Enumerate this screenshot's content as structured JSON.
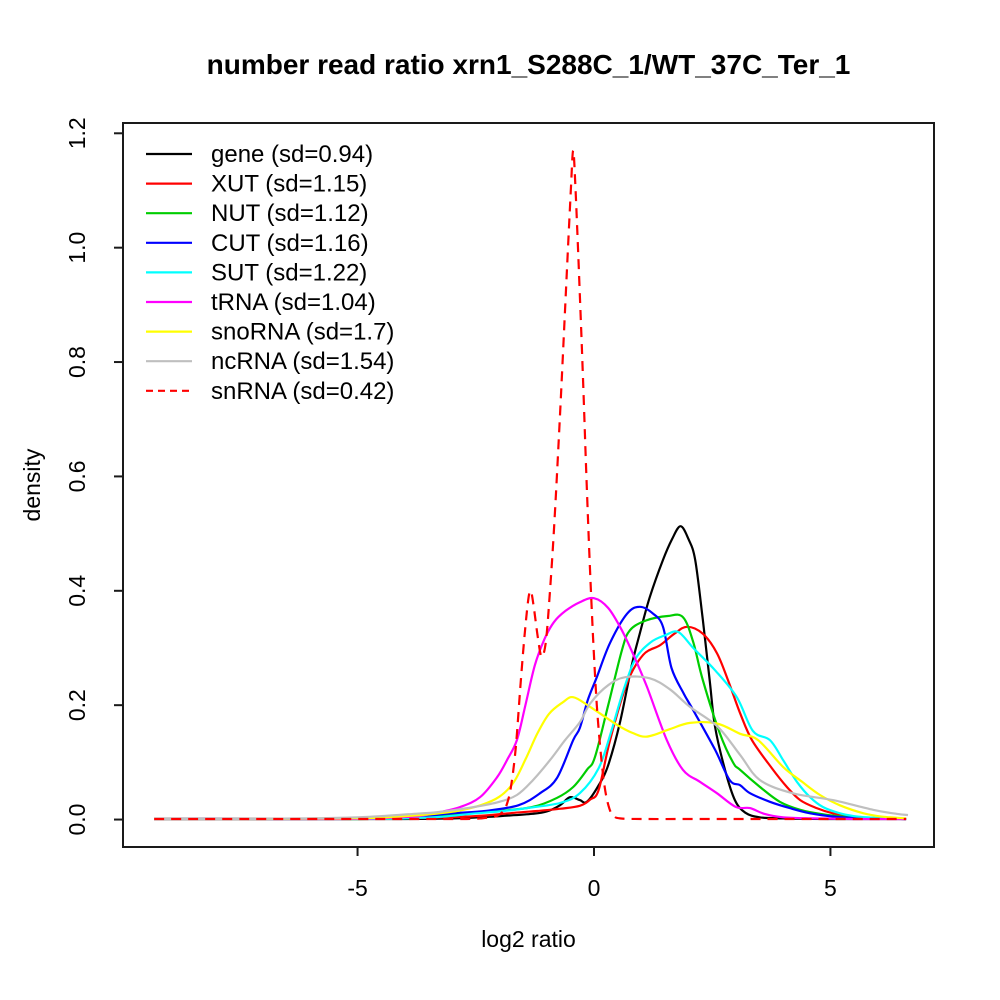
{
  "figure": {
    "background": "#ffffff",
    "box_color": "#1a1a1a"
  },
  "chart_data": {
    "type": "line",
    "title": "number read ratio xrn1_S288C_1/WT_37C_Ter_1",
    "xlabel": "log2 ratio",
    "ylabel": "density",
    "xlim": [
      -9.96,
      7.19
    ],
    "ylim": [
      -0.048,
      1.218
    ],
    "x_ticks": [
      -5,
      0,
      5
    ],
    "x_tick_labels": [
      "-5",
      "0",
      "5"
    ],
    "y_ticks": [
      0.0,
      0.2,
      0.4,
      0.6,
      0.8,
      1.0,
      1.2
    ],
    "y_tick_labels": [
      "0.0",
      "0.2",
      "0.4",
      "0.6",
      "0.8",
      "1.0",
      "1.2"
    ],
    "grid": false,
    "legend_position": "top-left",
    "series": [
      {
        "name": "gene",
        "label": "gene (sd=0.94)",
        "sd": 0.94,
        "color": "#000000",
        "dash": false,
        "points": [
          [
            -9.3,
            0.001
          ],
          [
            -7,
            0.001
          ],
          [
            -5,
            0.001
          ],
          [
            -4,
            0.001
          ],
          [
            -3,
            0.002
          ],
          [
            -2.4,
            0.004
          ],
          [
            -1.8,
            0.007
          ],
          [
            -1.3,
            0.01
          ],
          [
            -1,
            0.014
          ],
          [
            -0.72,
            0.025
          ],
          [
            -0.51,
            0.039
          ],
          [
            -0.3,
            0.034
          ],
          [
            -0.15,
            0.031
          ],
          [
            0.1,
            0.06
          ],
          [
            0.3,
            0.095
          ],
          [
            0.55,
            0.17
          ],
          [
            0.8,
            0.27
          ],
          [
            0.97,
            0.326
          ],
          [
            1.18,
            0.389
          ],
          [
            1.46,
            0.454
          ],
          [
            1.65,
            0.49
          ],
          [
            1.83,
            0.513
          ],
          [
            2,
            0.49
          ],
          [
            2.14,
            0.454
          ],
          [
            2.3,
            0.35
          ],
          [
            2.45,
            0.24
          ],
          [
            2.56,
            0.162
          ],
          [
            2.77,
            0.087
          ],
          [
            2.98,
            0.034
          ],
          [
            3.2,
            0.012
          ],
          [
            3.5,
            0.004
          ],
          [
            4,
            0.002
          ],
          [
            5,
            0.001
          ],
          [
            6.6,
            0.001
          ]
        ]
      },
      {
        "name": "XUT",
        "label": "XUT (sd=1.15)",
        "sd": 1.15,
        "color": "#ff0000",
        "dash": false,
        "points": [
          [
            -9.3,
            0.001
          ],
          [
            -7,
            0.001
          ],
          [
            -5,
            0.001
          ],
          [
            -4,
            0.002
          ],
          [
            -3,
            0.004
          ],
          [
            -2.3,
            0.007
          ],
          [
            -1.8,
            0.011
          ],
          [
            -1.2,
            0.015
          ],
          [
            -0.7,
            0.019
          ],
          [
            -0.3,
            0.024
          ],
          [
            -0.08,
            0.035
          ],
          [
            0.1,
            0.052
          ],
          [
            0.34,
            0.139
          ],
          [
            0.7,
            0.239
          ],
          [
            1.04,
            0.288
          ],
          [
            1.4,
            0.305
          ],
          [
            1.7,
            0.325
          ],
          [
            1.97,
            0.337
          ],
          [
            2.3,
            0.325
          ],
          [
            2.6,
            0.291
          ],
          [
            2.85,
            0.24
          ],
          [
            3.09,
            0.186
          ],
          [
            3.34,
            0.139
          ],
          [
            3.76,
            0.09
          ],
          [
            4.08,
            0.057
          ],
          [
            4.36,
            0.034
          ],
          [
            4.71,
            0.02
          ],
          [
            5.05,
            0.011
          ],
          [
            5.5,
            0.005
          ],
          [
            6,
            0.002
          ],
          [
            6.6,
            0.001
          ]
        ]
      },
      {
        "name": "NUT",
        "label": "NUT (sd=1.12)",
        "sd": 1.12,
        "color": "#00cd00",
        "dash": false,
        "points": [
          [
            -9.3,
            0.001
          ],
          [
            -7,
            0.001
          ],
          [
            -5,
            0.001
          ],
          [
            -4,
            0.002
          ],
          [
            -3.4,
            0.005
          ],
          [
            -2.8,
            0.01
          ],
          [
            -2,
            0.015
          ],
          [
            -1.3,
            0.022
          ],
          [
            -0.78,
            0.038
          ],
          [
            -0.44,
            0.057
          ],
          [
            -0.15,
            0.087
          ],
          [
            0.02,
            0.109
          ],
          [
            0.3,
            0.2
          ],
          [
            0.59,
            0.296
          ],
          [
            0.76,
            0.331
          ],
          [
            1.1,
            0.348
          ],
          [
            1.56,
            0.356
          ],
          [
            1.88,
            0.354
          ],
          [
            2.1,
            0.31
          ],
          [
            2.3,
            0.244
          ],
          [
            2.66,
            0.151
          ],
          [
            2.94,
            0.1
          ],
          [
            3.09,
            0.087
          ],
          [
            3.51,
            0.057
          ],
          [
            3.93,
            0.031
          ],
          [
            4.36,
            0.017
          ],
          [
            4.78,
            0.01
          ],
          [
            5.3,
            0.005
          ],
          [
            6,
            0.002
          ],
          [
            6.6,
            0.001
          ]
        ]
      },
      {
        "name": "CUT",
        "label": "CUT (sd=1.16)",
        "sd": 1.16,
        "color": "#0000ff",
        "dash": false,
        "points": [
          [
            -9.3,
            0.001
          ],
          [
            -7,
            0.001
          ],
          [
            -5,
            0.002
          ],
          [
            -4.2,
            0.003
          ],
          [
            -3.6,
            0.006
          ],
          [
            -3,
            0.011
          ],
          [
            -2.3,
            0.015
          ],
          [
            -1.6,
            0.025
          ],
          [
            -1.14,
            0.046
          ],
          [
            -0.78,
            0.073
          ],
          [
            -0.44,
            0.139
          ],
          [
            -0.3,
            0.16
          ],
          [
            -0.13,
            0.209
          ],
          [
            0.06,
            0.249
          ],
          [
            0.34,
            0.309
          ],
          [
            0.7,
            0.36
          ],
          [
            0.97,
            0.372
          ],
          [
            1.25,
            0.36
          ],
          [
            1.46,
            0.337
          ],
          [
            1.64,
            0.265
          ],
          [
            1.9,
            0.22
          ],
          [
            2.1,
            0.191
          ],
          [
            2.56,
            0.122
          ],
          [
            2.87,
            0.069
          ],
          [
            3.09,
            0.06
          ],
          [
            3.3,
            0.046
          ],
          [
            3.72,
            0.031
          ],
          [
            4.14,
            0.02
          ],
          [
            4.57,
            0.011
          ],
          [
            5.1,
            0.005
          ],
          [
            5.8,
            0.002
          ],
          [
            6.6,
            0.001
          ]
        ]
      },
      {
        "name": "SUT",
        "label": "SUT (sd=1.22)",
        "sd": 1.22,
        "color": "#00ffff",
        "dash": false,
        "points": [
          [
            -9.3,
            0.001
          ],
          [
            -7,
            0.001
          ],
          [
            -5,
            0.001
          ],
          [
            -4,
            0.002
          ],
          [
            -3.2,
            0.005
          ],
          [
            -2.6,
            0.01
          ],
          [
            -1.9,
            0.015
          ],
          [
            -1.42,
            0.02
          ],
          [
            -0.72,
            0.029
          ],
          [
            -0.3,
            0.046
          ],
          [
            0.1,
            0.09
          ],
          [
            0.35,
            0.15
          ],
          [
            0.6,
            0.22
          ],
          [
            0.87,
            0.28
          ],
          [
            1.2,
            0.31
          ],
          [
            1.5,
            0.322
          ],
          [
            1.78,
            0.328
          ],
          [
            2.1,
            0.3
          ],
          [
            2.56,
            0.261
          ],
          [
            3.02,
            0.214
          ],
          [
            3.36,
            0.155
          ],
          [
            3.72,
            0.139
          ],
          [
            4,
            0.104
          ],
          [
            4.29,
            0.066
          ],
          [
            4.57,
            0.039
          ],
          [
            4.84,
            0.022
          ],
          [
            5.2,
            0.011
          ],
          [
            5.6,
            0.005
          ],
          [
            6.2,
            0.002
          ],
          [
            6.6,
            0.001
          ]
        ]
      },
      {
        "name": "tRNA",
        "label": "tRNA (sd=1.04)",
        "sd": 1.04,
        "color": "#ff00ff",
        "dash": false,
        "points": [
          [
            -9.3,
            0.001
          ],
          [
            -7,
            0.001
          ],
          [
            -5.5,
            0.001
          ],
          [
            -4.6,
            0.002
          ],
          [
            -4.1,
            0.004
          ],
          [
            -3.7,
            0.006
          ],
          [
            -3.26,
            0.013
          ],
          [
            -2.83,
            0.022
          ],
          [
            -2.41,
            0.039
          ],
          [
            -2.05,
            0.074
          ],
          [
            -1.84,
            0.104
          ],
          [
            -1.63,
            0.139
          ],
          [
            -1.45,
            0.2
          ],
          [
            -1.25,
            0.27
          ],
          [
            -1.05,
            0.315
          ],
          [
            -0.85,
            0.345
          ],
          [
            -0.6,
            0.365
          ],
          [
            -0.3,
            0.38
          ],
          [
            0,
            0.387
          ],
          [
            0.3,
            0.37
          ],
          [
            0.59,
            0.331
          ],
          [
            0.85,
            0.285
          ],
          [
            1.12,
            0.232
          ],
          [
            1.54,
            0.139
          ],
          [
            1.88,
            0.087
          ],
          [
            2.24,
            0.066
          ],
          [
            2.6,
            0.046
          ],
          [
            3,
            0.022
          ],
          [
            3.3,
            0.02
          ],
          [
            3.6,
            0.01
          ],
          [
            4,
            0.004
          ],
          [
            4.6,
            0.002
          ],
          [
            5.5,
            0.001
          ],
          [
            6.6,
            0.001
          ]
        ]
      },
      {
        "name": "snoRNA",
        "label": "snoRNA (sd=1.7)",
        "sd": 1.7,
        "color": "#ffff00",
        "dash": false,
        "points": [
          [
            -9.3,
            0.001
          ],
          [
            -7,
            0.001
          ],
          [
            -5.5,
            0.002
          ],
          [
            -4.6,
            0.003
          ],
          [
            -4,
            0.006
          ],
          [
            -3.5,
            0.009
          ],
          [
            -2.9,
            0.015
          ],
          [
            -2.4,
            0.025
          ],
          [
            -2,
            0.04
          ],
          [
            -1.7,
            0.065
          ],
          [
            -1.45,
            0.105
          ],
          [
            -1.2,
            0.15
          ],
          [
            -0.95,
            0.185
          ],
          [
            -0.66,
            0.205
          ],
          [
            -0.44,
            0.214
          ],
          [
            -0.08,
            0.197
          ],
          [
            0.5,
            0.165
          ],
          [
            0.8,
            0.152
          ],
          [
            1.12,
            0.145
          ],
          [
            1.6,
            0.158
          ],
          [
            2.03,
            0.169
          ],
          [
            2.6,
            0.168
          ],
          [
            3.09,
            0.15
          ],
          [
            3.47,
            0.139
          ],
          [
            4,
            0.092
          ],
          [
            4.4,
            0.066
          ],
          [
            4.78,
            0.043
          ],
          [
            5.2,
            0.025
          ],
          [
            5.7,
            0.011
          ],
          [
            6.1,
            0.005
          ],
          [
            6.6,
            0.002
          ]
        ]
      },
      {
        "name": "ncRNA",
        "label": "ncRNA (sd=1.54)",
        "sd": 1.54,
        "color": "#bfbfbf",
        "dash": false,
        "points": [
          [
            -9.3,
            0.001
          ],
          [
            -7.5,
            0.001
          ],
          [
            -6,
            0.002
          ],
          [
            -5,
            0.004
          ],
          [
            -4.3,
            0.007
          ],
          [
            -3.8,
            0.01
          ],
          [
            -3.3,
            0.013
          ],
          [
            -2.68,
            0.02
          ],
          [
            -2.05,
            0.03
          ],
          [
            -1.63,
            0.043
          ],
          [
            -1.29,
            0.069
          ],
          [
            -0.93,
            0.104
          ],
          [
            -0.61,
            0.139
          ],
          [
            -0.3,
            0.17
          ],
          [
            -0.08,
            0.203
          ],
          [
            0.3,
            0.235
          ],
          [
            0.66,
            0.249
          ],
          [
            1.18,
            0.247
          ],
          [
            1.6,
            0.228
          ],
          [
            2.03,
            0.197
          ],
          [
            2.62,
            0.162
          ],
          [
            3.09,
            0.113
          ],
          [
            3.51,
            0.069
          ],
          [
            4.2,
            0.046
          ],
          [
            5.05,
            0.034
          ],
          [
            5.9,
            0.017
          ],
          [
            6.4,
            0.01
          ],
          [
            6.64,
            0.008
          ]
        ]
      },
      {
        "name": "snRNA",
        "label": "snRNA (sd=0.42)",
        "sd": 0.42,
        "color": "#ff0000",
        "dash": true,
        "points": [
          [
            -9.3,
            0.001
          ],
          [
            -7,
            0.001
          ],
          [
            -5,
            0.001
          ],
          [
            -3.5,
            0.001
          ],
          [
            -2.7,
            0.001
          ],
          [
            -2.4,
            0.002
          ],
          [
            -2.1,
            0.005
          ],
          [
            -1.95,
            0.012
          ],
          [
            -1.85,
            0.025
          ],
          [
            -1.75,
            0.06
          ],
          [
            -1.65,
            0.13
          ],
          [
            -1.55,
            0.24
          ],
          [
            -1.46,
            0.33
          ],
          [
            -1.38,
            0.39
          ],
          [
            -1.33,
            0.398
          ],
          [
            -1.27,
            0.37
          ],
          [
            -1.19,
            0.32
          ],
          [
            -1.11,
            0.285
          ],
          [
            -1.02,
            0.31
          ],
          [
            -0.93,
            0.4
          ],
          [
            -0.83,
            0.53
          ],
          [
            -0.73,
            0.69
          ],
          [
            -0.63,
            0.86
          ],
          [
            -0.55,
            1.0
          ],
          [
            -0.49,
            1.1
          ],
          [
            -0.44,
            1.17
          ],
          [
            -0.39,
            1.1
          ],
          [
            -0.32,
            0.96
          ],
          [
            -0.24,
            0.79
          ],
          [
            -0.16,
            0.6
          ],
          [
            -0.09,
            0.45
          ],
          [
            -0.02,
            0.32
          ],
          [
            0.06,
            0.2
          ],
          [
            0.15,
            0.11
          ],
          [
            0.24,
            0.05
          ],
          [
            0.33,
            0.018
          ],
          [
            0.42,
            0.006
          ],
          [
            0.55,
            0.002
          ],
          [
            1,
            0.001
          ],
          [
            2.5,
            0.001
          ],
          [
            4,
            0.001
          ],
          [
            6.6,
            0.001
          ]
        ]
      }
    ]
  }
}
